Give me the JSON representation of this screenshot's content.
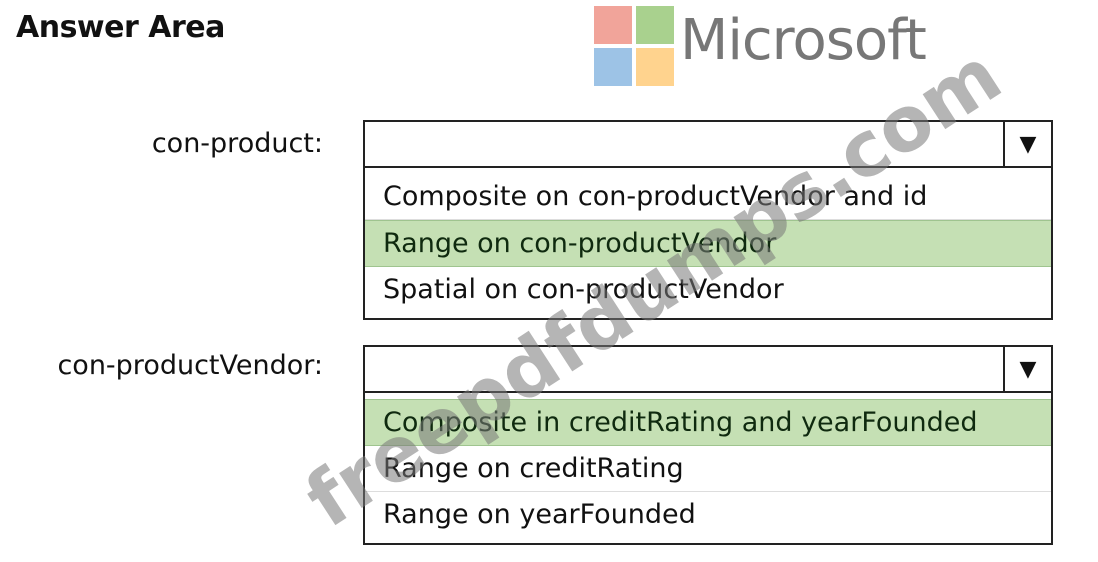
{
  "title": "Answer Area",
  "logo": {
    "text": "Microsoft",
    "colors": [
      "#f1a49a",
      "#a9d18e",
      "#9dc3e6",
      "#ffd38e"
    ]
  },
  "highlight_color": "#c5e0b4",
  "dropdowns": [
    {
      "label": "con-product:",
      "selected": "",
      "options": [
        "Composite on con-productVendor and id",
        "Range on con-productVendor",
        "Spatial on con-productVendor"
      ],
      "highlighted_index": 1
    },
    {
      "label": "con-productVendor:",
      "selected": "",
      "options": [
        "Composite in creditRating and yearFounded",
        "Range on creditRating",
        "Range on yearFounded"
      ],
      "highlighted_index": 0
    }
  ],
  "watermark": "freepdfdumps.com"
}
